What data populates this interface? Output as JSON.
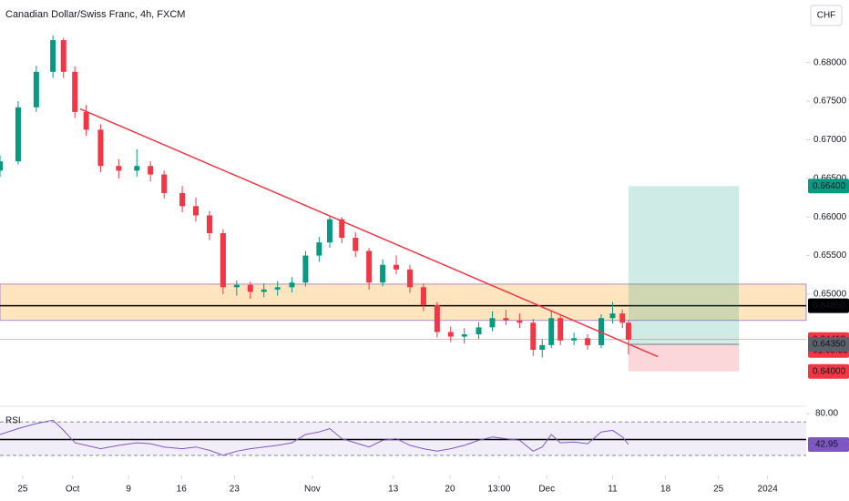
{
  "chart_data": {
    "type": "candlestick",
    "title": "Canadian Dollar/Swiss Franc, 4h, FXCM",
    "currency_button": "CHF",
    "up_color": "#089981",
    "down_color": "#f23645",
    "x": [
      -3.0,
      -0.6,
      1.8,
      4.0,
      5.4,
      6.9,
      8.4,
      10.3,
      12.7,
      15.1,
      16.9,
      18.7,
      21.1,
      22.9,
      24.7,
      26.5,
      28.3,
      30.1,
      31.9,
      33.7,
      35.6,
      37.4,
      39.2,
      40.6,
      42.2,
      44.0,
      45.8,
      47.6,
      49.4,
      51.2,
      53.0,
      54.8,
      56.6,
      58.4,
      60.3,
      62.1,
      63.9,
      65.7,
      67.5,
      68.7,
      69.9,
      71.1,
      72.9,
      74.7,
      76.5,
      78.0,
      79.3,
      80.1
    ],
    "open": [
      0.666,
      0.6672,
      0.6742,
      0.6788,
      0.6829,
      0.6788,
      0.6736,
      0.6713,
      0.6666,
      0.666,
      0.6666,
      0.6655,
      0.6631,
      0.6614,
      0.6602,
      0.6579,
      0.6509,
      0.6512,
      0.6503,
      0.6506,
      0.6509,
      0.6515,
      0.655,
      0.6567,
      0.6597,
      0.6573,
      0.6556,
      0.6515,
      0.6538,
      0.6532,
      0.6509,
      0.6486,
      0.6451,
      0.6445,
      0.6448,
      0.6457,
      0.6469,
      0.6466,
      0.6463,
      0.6428,
      0.6434,
      0.6469,
      0.644,
      0.6443,
      0.6434,
      0.6469,
      0.6475,
      0.6463
    ],
    "high": [
      0.668,
      0.675,
      0.6796,
      0.6835,
      0.6832,
      0.6795,
      0.6745,
      0.672,
      0.6675,
      0.6688,
      0.6672,
      0.666,
      0.664,
      0.6625,
      0.6608,
      0.6584,
      0.6518,
      0.6516,
      0.6514,
      0.6517,
      0.6522,
      0.6556,
      0.6574,
      0.6602,
      0.66,
      0.658,
      0.656,
      0.6545,
      0.655,
      0.6538,
      0.6514,
      0.649,
      0.6458,
      0.6456,
      0.6464,
      0.6478,
      0.648,
      0.6475,
      0.6468,
      0.6442,
      0.6478,
      0.6472,
      0.645,
      0.6448,
      0.6474,
      0.649,
      0.648,
      0.6466
    ],
    "low": [
      0.6652,
      0.6668,
      0.6736,
      0.678,
      0.678,
      0.6728,
      0.6705,
      0.6658,
      0.665,
      0.6652,
      0.6646,
      0.6624,
      0.6606,
      0.6594,
      0.657,
      0.65,
      0.6498,
      0.6494,
      0.6496,
      0.6498,
      0.6502,
      0.651,
      0.6542,
      0.656,
      0.6566,
      0.6548,
      0.6506,
      0.651,
      0.6526,
      0.6502,
      0.6478,
      0.6444,
      0.6438,
      0.6436,
      0.6442,
      0.6452,
      0.646,
      0.6456,
      0.642,
      0.6418,
      0.643,
      0.6434,
      0.6434,
      0.6428,
      0.643,
      0.6462,
      0.6456,
      0.6422
    ],
    "close": [
      0.6672,
      0.6742,
      0.6788,
      0.6829,
      0.6788,
      0.6736,
      0.6713,
      0.6666,
      0.666,
      0.6666,
      0.6655,
      0.6631,
      0.6614,
      0.6602,
      0.6579,
      0.6509,
      0.6512,
      0.6503,
      0.6506,
      0.6509,
      0.6515,
      0.655,
      0.6567,
      0.6597,
      0.6573,
      0.6556,
      0.6515,
      0.6538,
      0.6532,
      0.6509,
      0.6486,
      0.6451,
      0.6445,
      0.6448,
      0.6457,
      0.6469,
      0.6466,
      0.6463,
      0.6428,
      0.6434,
      0.6469,
      0.644,
      0.6443,
      0.6434,
      0.6469,
      0.6475,
      0.6463,
      0.6441
    ],
    "xlim": [
      -3,
      103.6
    ],
    "ylim": [
      0.6356,
      0.6881
    ],
    "xticks": [
      {
        "value": 0,
        "label": "25"
      },
      {
        "value": 6.6,
        "label": "Oct"
      },
      {
        "value": 14,
        "label": "9"
      },
      {
        "value": 21,
        "label": "16"
      },
      {
        "value": 28,
        "label": "23"
      },
      {
        "value": 38.3,
        "label": "Nov"
      },
      {
        "value": 49,
        "label": "13"
      },
      {
        "value": 56.5,
        "label": "20"
      },
      {
        "value": 63,
        "label": "13:00"
      },
      {
        "value": 69.3,
        "label": "Dec"
      },
      {
        "value": 78,
        "label": "11"
      },
      {
        "value": 85,
        "label": "18"
      },
      {
        "value": 92,
        "label": "25"
      },
      {
        "value": 98.5,
        "label": "2024"
      }
    ],
    "yticks": [
      {
        "value": 0.68,
        "label": "0.68000"
      },
      {
        "value": 0.675,
        "label": "0.67500"
      },
      {
        "value": 0.67,
        "label": "0.67000"
      },
      {
        "value": 0.665,
        "label": "0.66500"
      },
      {
        "value": 0.66,
        "label": "0.66000"
      },
      {
        "value": 0.655,
        "label": "0.65500"
      },
      {
        "value": 0.65,
        "label": "0.65000"
      }
    ],
    "price_labels": [
      {
        "value": 0.664,
        "label": "0.66400",
        "color": "#089981"
      },
      {
        "value": 0.6485,
        "label": "0.64850",
        "color": "#000000"
      },
      {
        "value": 0.64413,
        "label": "0.64413",
        "color": "#f23645"
      },
      {
        "value": 0.6435,
        "label": "0.64350",
        "color": "#5d606b"
      },
      {
        "value": 0.64,
        "label": "0.64000",
        "color": "#f23645"
      }
    ],
    "countdown": "01:05:59",
    "drawings": {
      "zone": [
        0.6513,
        0.6466
      ],
      "level": 0.6485,
      "trendline": {
        "x": [
          7.6,
          84.0
        ],
        "y": [
          0.674,
          0.6419
        ]
      },
      "position": {
        "x": [
          80.1,
          94.7
        ],
        "target": 0.664,
        "entry": 0.6435,
        "stop": 0.64
      }
    },
    "rsi": {
      "label": "RSI",
      "color": "#7e57c2",
      "values": [
        55,
        62,
        68,
        72,
        60,
        45,
        42,
        38,
        42,
        45,
        44,
        40,
        38,
        40,
        36,
        30,
        35,
        38,
        40,
        42,
        45,
        55,
        58,
        62,
        50,
        45,
        40,
        48,
        50,
        42,
        38,
        35,
        38,
        42,
        48,
        52,
        50,
        48,
        35,
        40,
        55,
        45,
        46,
        44,
        58,
        60,
        52,
        42.95
      ],
      "ylim": [
        13.6,
        87.6
      ],
      "yticks": [
        {
          "value": 80,
          "label": "80.00"
        }
      ],
      "bands": [
        70,
        30
      ],
      "midline": 49,
      "last": {
        "value": 42.95,
        "label": "42.95"
      }
    }
  }
}
